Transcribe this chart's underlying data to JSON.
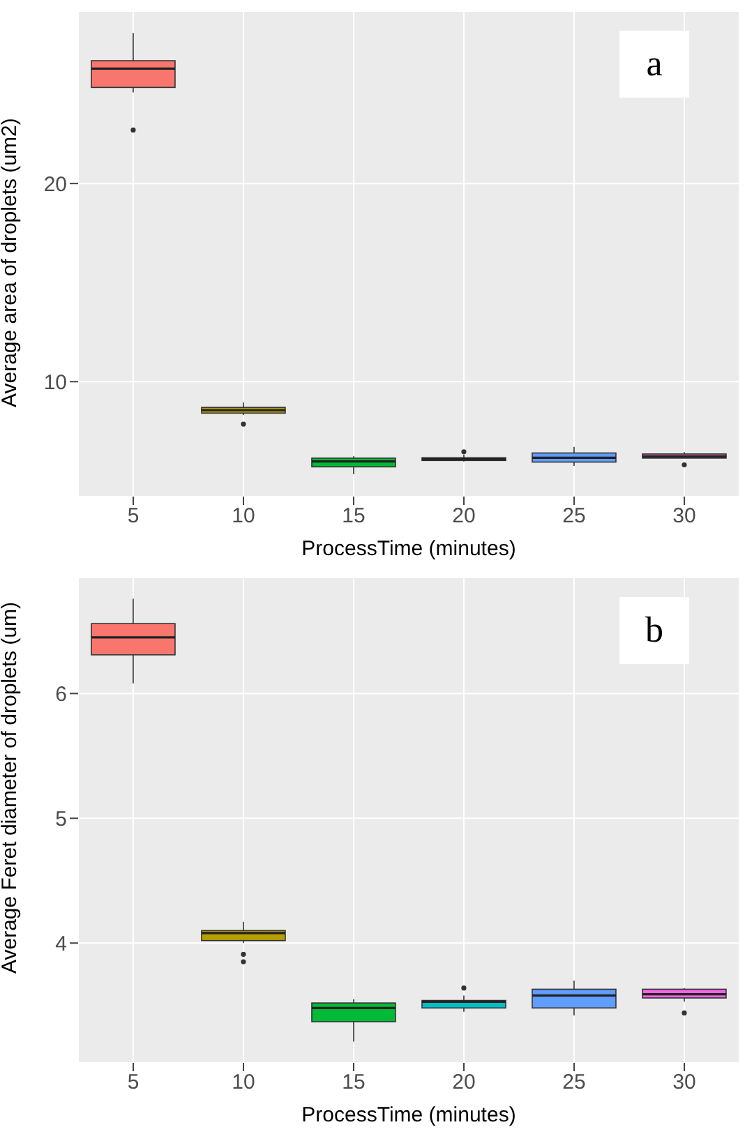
{
  "chart_data": [
    {
      "type": "box",
      "categories": [
        "5",
        "10",
        "15",
        "20",
        "25",
        "30"
      ],
      "xlabel": "ProcessTime (minutes)",
      "ylabel": "Average area of droplets (um2)",
      "annotations": [
        "a"
      ],
      "colors": [
        "#f8766d",
        "#b79f00",
        "#00ba38",
        "#00bfc4",
        "#619cff",
        "#f564e3"
      ],
      "boxes": [
        {
          "low": 24.6,
          "q1": 24.85,
          "median": 25.8,
          "q3": 26.2,
          "high": 27.6,
          "outliers": [
            22.7
          ]
        },
        {
          "low": 8.32,
          "q1": 8.41,
          "median": 8.56,
          "q3": 8.7,
          "high": 8.95,
          "outliers": [
            7.86
          ]
        },
        {
          "low": 5.33,
          "q1": 5.7,
          "median": 5.97,
          "q3": 6.14,
          "high": 6.23
        },
        {
          "low": 5.97,
          "q1": 6.02,
          "median": 6.09,
          "q3": 6.16,
          "high": 6.31,
          "outliers": [
            6.46
          ]
        },
        {
          "low": 5.75,
          "q1": 5.94,
          "median": 6.16,
          "q3": 6.4,
          "high": 6.71
        },
        {
          "low": 6.14,
          "q1": 6.14,
          "median": 6.23,
          "q3": 6.35,
          "high": 6.44,
          "outliers": [
            5.8
          ]
        }
      ],
      "ylim": [
        4.2,
        28.7
      ],
      "yticks": [
        10,
        20
      ],
      "grid": true
    },
    {
      "type": "box",
      "categories": [
        "5",
        "10",
        "15",
        "20",
        "25",
        "30"
      ],
      "xlabel": "ProcessTime (minutes)",
      "ylabel": "Average Feret diameter of droplets (um)",
      "annotations": [
        "b"
      ],
      "colors": [
        "#f8766d",
        "#b79f00",
        "#00ba38",
        "#00bfc4",
        "#619cff",
        "#f564e3"
      ],
      "boxes": [
        {
          "low": 6.08,
          "q1": 6.31,
          "median": 6.45,
          "q3": 6.56,
          "high": 6.76
        },
        {
          "low": 4.0,
          "q1": 4.02,
          "median": 4.08,
          "q3": 4.1,
          "high": 4.17,
          "outliers": [
            3.91,
            3.85
          ]
        },
        {
          "low": 3.21,
          "q1": 3.37,
          "median": 3.48,
          "q3": 3.52,
          "high": 3.55
        },
        {
          "low": 3.45,
          "q1": 3.48,
          "median": 3.53,
          "q3": 3.54,
          "high": 3.58,
          "outliers": [
            3.64
          ]
        },
        {
          "low": 3.42,
          "q1": 3.48,
          "median": 3.58,
          "q3": 3.63,
          "high": 3.7
        },
        {
          "low": 3.53,
          "q1": 3.56,
          "median": 3.59,
          "q3": 3.63,
          "high": 3.64,
          "outliers": [
            3.44
          ]
        }
      ],
      "ylim": [
        3.04,
        6.93
      ],
      "yticks": [
        4,
        5,
        6
      ],
      "grid": true
    }
  ]
}
